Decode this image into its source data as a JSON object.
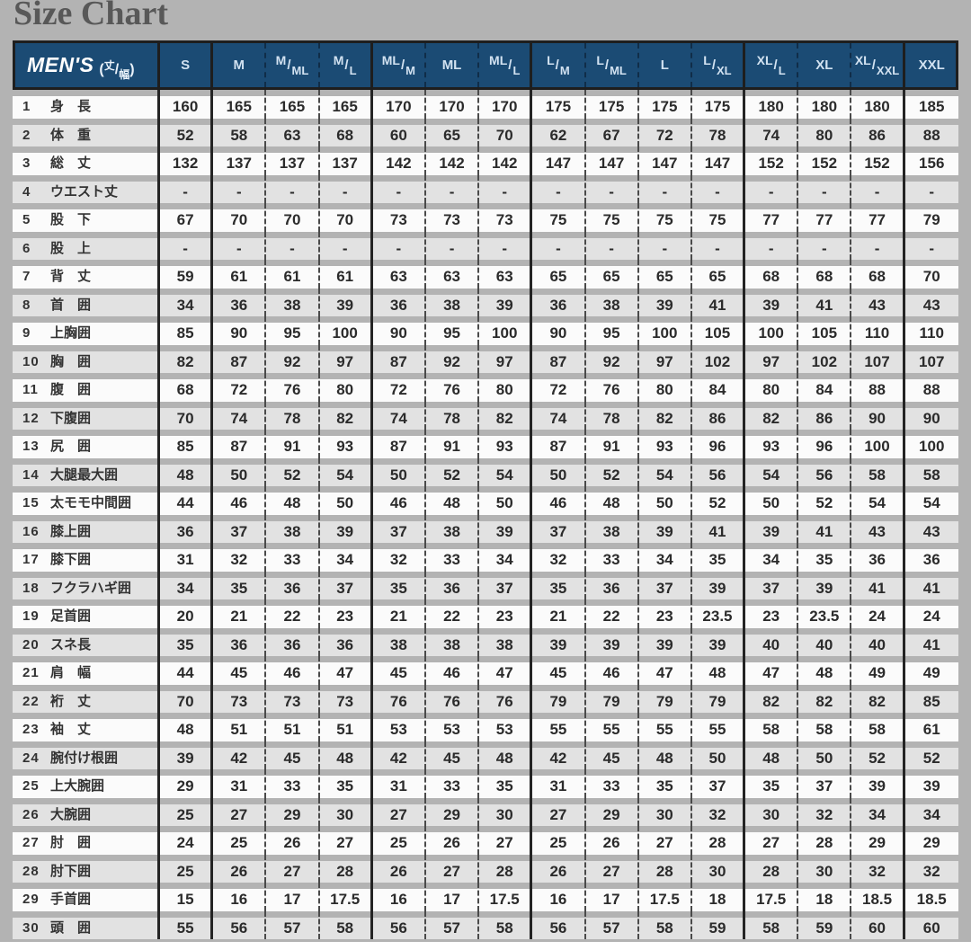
{
  "title": "Size Chart",
  "colors": {
    "panel_bg": "#b3b3b3",
    "header_bg": "#1b4b74",
    "header_text": "#d2e2f1",
    "band_light": "#fbfbfb",
    "band_dark": "#e2e2e2",
    "solid_line": "#242424",
    "dash_line": "#4a4a4a",
    "title_color": "#585858",
    "value_color": "#2b2b2b"
  },
  "table": {
    "corner": {
      "title": "MEN'S",
      "sub_top": "丈",
      "sub_bottom": "幅"
    },
    "sizes": [
      "S",
      "M",
      "M/ML",
      "M/L",
      "ML/M",
      "ML",
      "ML/L",
      "L/M",
      "L/ML",
      "L",
      "L/XL",
      "XL/L",
      "XL",
      "XL/XXL",
      "XXL"
    ],
    "group_boundary_after": [
      "S",
      "M/L",
      "ML/L",
      "L/XL",
      "XL/XXL"
    ],
    "rows": [
      {
        "no": "1",
        "label": "身　長",
        "values": [
          "160",
          "165",
          "165",
          "165",
          "170",
          "170",
          "170",
          "175",
          "175",
          "175",
          "175",
          "180",
          "180",
          "180",
          "185"
        ]
      },
      {
        "no": "2",
        "label": "体　重",
        "values": [
          "52",
          "58",
          "63",
          "68",
          "60",
          "65",
          "70",
          "62",
          "67",
          "72",
          "78",
          "74",
          "80",
          "86",
          "88"
        ]
      },
      {
        "no": "3",
        "label": "総　丈",
        "values": [
          "132",
          "137",
          "137",
          "137",
          "142",
          "142",
          "142",
          "147",
          "147",
          "147",
          "147",
          "152",
          "152",
          "152",
          "156"
        ]
      },
      {
        "no": "4",
        "label": "ウエスト丈",
        "values": [
          "-",
          "-",
          "-",
          "-",
          "-",
          "-",
          "-",
          "-",
          "-",
          "-",
          "-",
          "-",
          "-",
          "-",
          "-"
        ]
      },
      {
        "no": "5",
        "label": "股　下",
        "values": [
          "67",
          "70",
          "70",
          "70",
          "73",
          "73",
          "73",
          "75",
          "75",
          "75",
          "75",
          "77",
          "77",
          "77",
          "79"
        ]
      },
      {
        "no": "6",
        "label": "股　上",
        "values": [
          "-",
          "-",
          "-",
          "-",
          "-",
          "-",
          "-",
          "-",
          "-",
          "-",
          "-",
          "-",
          "-",
          "-",
          "-"
        ]
      },
      {
        "no": "7",
        "label": "背　丈",
        "values": [
          "59",
          "61",
          "61",
          "61",
          "63",
          "63",
          "63",
          "65",
          "65",
          "65",
          "65",
          "68",
          "68",
          "68",
          "70"
        ]
      },
      {
        "no": "8",
        "label": "首　囲",
        "values": [
          "34",
          "36",
          "38",
          "39",
          "36",
          "38",
          "39",
          "36",
          "38",
          "39",
          "41",
          "39",
          "41",
          "43",
          "43"
        ]
      },
      {
        "no": "9",
        "label": "上胸囲",
        "values": [
          "85",
          "90",
          "95",
          "100",
          "90",
          "95",
          "100",
          "90",
          "95",
          "100",
          "105",
          "100",
          "105",
          "110",
          "110"
        ]
      },
      {
        "no": "10",
        "label": "胸　囲",
        "values": [
          "82",
          "87",
          "92",
          "97",
          "87",
          "92",
          "97",
          "87",
          "92",
          "97",
          "102",
          "97",
          "102",
          "107",
          "107"
        ]
      },
      {
        "no": "11",
        "label": "腹　囲",
        "values": [
          "68",
          "72",
          "76",
          "80",
          "72",
          "76",
          "80",
          "72",
          "76",
          "80",
          "84",
          "80",
          "84",
          "88",
          "88"
        ]
      },
      {
        "no": "12",
        "label": "下腹囲",
        "values": [
          "70",
          "74",
          "78",
          "82",
          "74",
          "78",
          "82",
          "74",
          "78",
          "82",
          "86",
          "82",
          "86",
          "90",
          "90"
        ]
      },
      {
        "no": "13",
        "label": "尻　囲",
        "values": [
          "85",
          "87",
          "91",
          "93",
          "87",
          "91",
          "93",
          "87",
          "91",
          "93",
          "96",
          "93",
          "96",
          "100",
          "100"
        ]
      },
      {
        "no": "14",
        "label": "大腿最大囲",
        "values": [
          "48",
          "50",
          "52",
          "54",
          "50",
          "52",
          "54",
          "50",
          "52",
          "54",
          "56",
          "54",
          "56",
          "58",
          "58"
        ]
      },
      {
        "no": "15",
        "label": "太モモ中間囲",
        "values": [
          "44",
          "46",
          "48",
          "50",
          "46",
          "48",
          "50",
          "46",
          "48",
          "50",
          "52",
          "50",
          "52",
          "54",
          "54"
        ]
      },
      {
        "no": "16",
        "label": "膝上囲",
        "values": [
          "36",
          "37",
          "38",
          "39",
          "37",
          "38",
          "39",
          "37",
          "38",
          "39",
          "41",
          "39",
          "41",
          "43",
          "43"
        ]
      },
      {
        "no": "17",
        "label": "膝下囲",
        "values": [
          "31",
          "32",
          "33",
          "34",
          "32",
          "33",
          "34",
          "32",
          "33",
          "34",
          "35",
          "34",
          "35",
          "36",
          "36"
        ]
      },
      {
        "no": "18",
        "label": "フクラハギ囲",
        "values": [
          "34",
          "35",
          "36",
          "37",
          "35",
          "36",
          "37",
          "35",
          "36",
          "37",
          "39",
          "37",
          "39",
          "41",
          "41"
        ]
      },
      {
        "no": "19",
        "label": "足首囲",
        "values": [
          "20",
          "21",
          "22",
          "23",
          "21",
          "22",
          "23",
          "21",
          "22",
          "23",
          "23.5",
          "23",
          "23.5",
          "24",
          "24"
        ]
      },
      {
        "no": "20",
        "label": "スネ長",
        "values": [
          "35",
          "36",
          "36",
          "36",
          "38",
          "38",
          "38",
          "39",
          "39",
          "39",
          "39",
          "40",
          "40",
          "40",
          "41"
        ]
      },
      {
        "no": "21",
        "label": "肩　幅",
        "values": [
          "44",
          "45",
          "46",
          "47",
          "45",
          "46",
          "47",
          "45",
          "46",
          "47",
          "48",
          "47",
          "48",
          "49",
          "49"
        ]
      },
      {
        "no": "22",
        "label": "裄　丈",
        "values": [
          "70",
          "73",
          "73",
          "73",
          "76",
          "76",
          "76",
          "79",
          "79",
          "79",
          "79",
          "82",
          "82",
          "82",
          "85"
        ]
      },
      {
        "no": "23",
        "label": "袖　丈",
        "values": [
          "48",
          "51",
          "51",
          "51",
          "53",
          "53",
          "53",
          "55",
          "55",
          "55",
          "55",
          "58",
          "58",
          "58",
          "61"
        ]
      },
      {
        "no": "24",
        "label": "腕付け根囲",
        "values": [
          "39",
          "42",
          "45",
          "48",
          "42",
          "45",
          "48",
          "42",
          "45",
          "48",
          "50",
          "48",
          "50",
          "52",
          "52"
        ]
      },
      {
        "no": "25",
        "label": "上大腕囲",
        "values": [
          "29",
          "31",
          "33",
          "35",
          "31",
          "33",
          "35",
          "31",
          "33",
          "35",
          "37",
          "35",
          "37",
          "39",
          "39"
        ]
      },
      {
        "no": "26",
        "label": "大腕囲",
        "values": [
          "25",
          "27",
          "29",
          "30",
          "27",
          "29",
          "30",
          "27",
          "29",
          "30",
          "32",
          "30",
          "32",
          "34",
          "34"
        ]
      },
      {
        "no": "27",
        "label": "肘　囲",
        "values": [
          "24",
          "25",
          "26",
          "27",
          "25",
          "26",
          "27",
          "25",
          "26",
          "27",
          "28",
          "27",
          "28",
          "29",
          "29"
        ]
      },
      {
        "no": "28",
        "label": "肘下囲",
        "values": [
          "25",
          "26",
          "27",
          "28",
          "26",
          "27",
          "28",
          "26",
          "27",
          "28",
          "30",
          "28",
          "30",
          "32",
          "32"
        ]
      },
      {
        "no": "29",
        "label": "手首囲",
        "values": [
          "15",
          "16",
          "17",
          "17.5",
          "16",
          "17",
          "17.5",
          "16",
          "17",
          "17.5",
          "18",
          "17.5",
          "18",
          "18.5",
          "18.5"
        ]
      },
      {
        "no": "30",
        "label": "頭　囲",
        "values": [
          "55",
          "56",
          "57",
          "58",
          "56",
          "57",
          "58",
          "56",
          "57",
          "58",
          "59",
          "58",
          "59",
          "60",
          "60"
        ]
      }
    ]
  }
}
